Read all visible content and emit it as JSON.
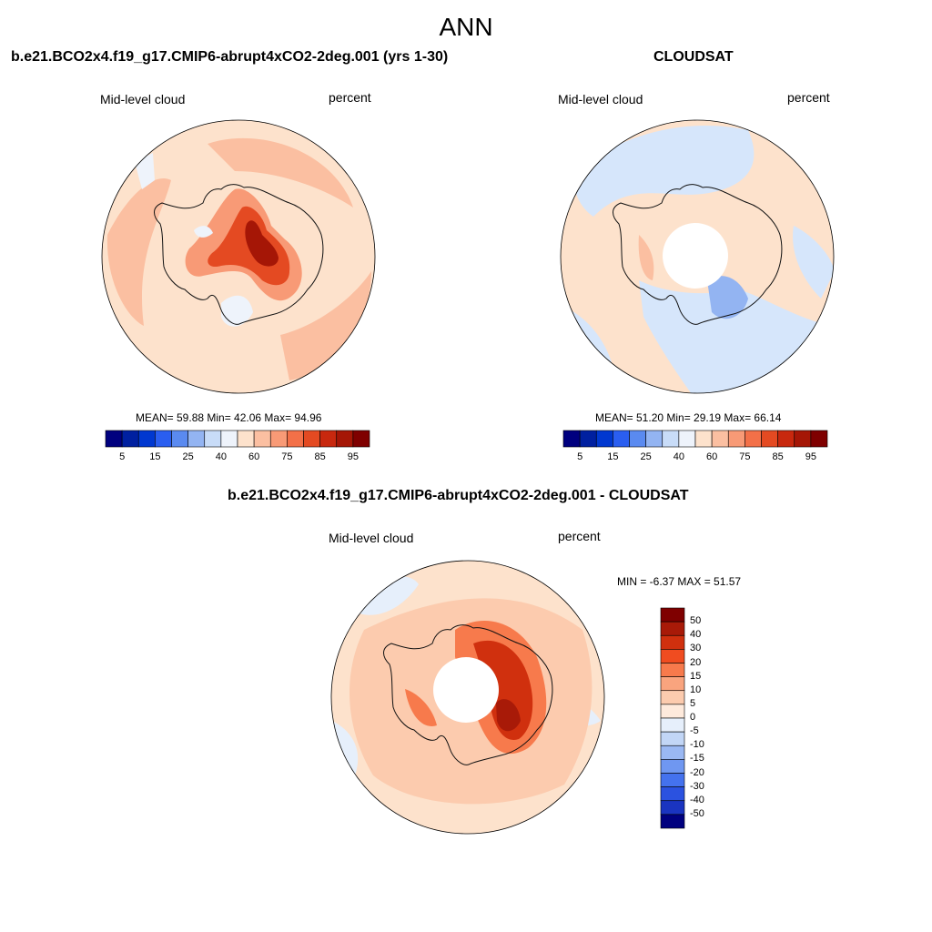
{
  "figure": {
    "season": "ANN"
  },
  "panels": {
    "model": {
      "title": "b.e21.BCO2x4.f19_g17.CMIP6-abrupt4xCO2-2deg.001 (yrs 1-30)",
      "variable": "Mid-level cloud",
      "units": "percent",
      "stats": "MEAN=  59.88  Min=  42.06  Max=  94.96"
    },
    "obs": {
      "title": "CLOUDSAT",
      "variable": "Mid-level cloud",
      "units": "percent",
      "stats": "MEAN=  51.20  Min=  29.19  Max=  66.14"
    },
    "diff": {
      "title": "b.e21.BCO2x4.f19_g17.CMIP6-abrupt4xCO2-2deg.001 - CLOUDSAT",
      "variable": "Mid-level cloud",
      "units": "percent",
      "stats": "MIN =  -6.37 MAX =  51.57"
    }
  },
  "colorbars": {
    "abs": {
      "colors": [
        "#00007f",
        "#0020a0",
        "#0038d0",
        "#2a5ef0",
        "#5a8af0",
        "#93b4f2",
        "#c8dcf8",
        "#eef3fb",
        "#fde2cc",
        "#fbbfa1",
        "#f89a76",
        "#f37048",
        "#e44a22",
        "#c8280e",
        "#a51606",
        "#7f0000"
      ],
      "tick_labels": [
        "5",
        "15",
        "25",
        "40",
        "60",
        "75",
        "85",
        "95"
      ]
    },
    "diff": {
      "colors": [
        "#7f0000",
        "#a81a08",
        "#d0300e",
        "#f04c20",
        "#f77a4c",
        "#f9a47e",
        "#fccbae",
        "#feeadc",
        "#e6effb",
        "#c2d6f6",
        "#9ab8f3",
        "#6f97f1",
        "#4472ee",
        "#2b52e0",
        "#1a34c0",
        "#00007f"
      ],
      "tick_labels": [
        "50",
        "40",
        "30",
        "20",
        "15",
        "10",
        "5",
        "0",
        "-5",
        "-10",
        "-15",
        "-20",
        "-30",
        "-40",
        "-50"
      ]
    }
  }
}
